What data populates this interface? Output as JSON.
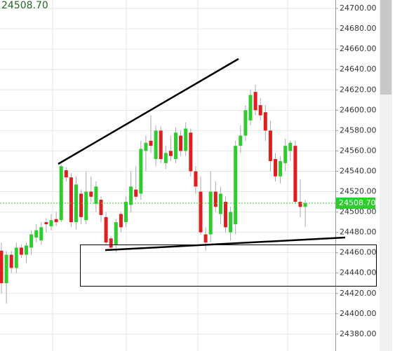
{
  "chart_data": {
    "type": "candlestick",
    "categories": [
      null,
      null,
      null,
      null,
      null,
      null,
      null,
      null,
      null,
      null,
      null,
      null,
      null,
      null,
      null,
      null,
      null,
      null,
      null,
      null,
      null,
      null,
      null,
      null,
      null,
      null,
      null,
      null,
      null,
      null,
      null,
      null,
      null,
      null,
      null,
      null,
      null,
      null,
      null,
      null,
      null,
      null,
      null,
      null,
      null,
      null,
      null,
      null,
      null,
      null,
      null,
      null,
      null,
      null,
      null,
      null,
      null,
      null,
      null,
      null,
      null,
      null
    ],
    "open": [
      24462,
      24430,
      24458,
      24445,
      24465,
      24458,
      24465,
      24475,
      24472,
      24490,
      24486,
      24493,
      24492,
      24541,
      24534,
      24490,
      24518,
      24492,
      24520,
      24508,
      24512,
      24495,
      24474,
      24468,
      24498,
      24490,
      24507,
      24522,
      24518,
      24560,
      24570,
      24552,
      24580,
      24548,
      24560,
      24552,
      24575,
      24560,
      24578,
      24540,
      24520,
      24478,
      24478,
      24520,
      24498,
      24510,
      24480,
      24488,
      24565,
      24575,
      24590,
      24618,
      24605,
      24598,
      24580,
      24552,
      24535,
      24548,
      24560,
      24565,
      24510,
      24505
    ],
    "high": [
      24470,
      24462,
      24462,
      24470,
      24468,
      24470,
      24482,
      24488,
      24490,
      24494,
      24498,
      24500,
      24547,
      24544,
      24538,
      24535,
      24522,
      24540,
      24535,
      24530,
      24515,
      24500,
      24476,
      24493,
      24500,
      24515,
      24540,
      24545,
      24570,
      24575,
      24595,
      24585,
      24584,
      24565,
      24575,
      24583,
      24580,
      24588,
      24582,
      24545,
      24535,
      24485,
      24540,
      24530,
      24525,
      24515,
      24505,
      24570,
      24585,
      24605,
      24620,
      24625,
      24612,
      24605,
      24590,
      24558,
      24555,
      24572,
      24570,
      24570,
      24532,
      24512
    ],
    "low": [
      24420,
      24410,
      24440,
      24440,
      24455,
      24450,
      24458,
      24470,
      24468,
      24480,
      24482,
      24486,
      24490,
      24530,
      24485,
      24483,
      24488,
      24488,
      24510,
      24500,
      24490,
      24468,
      24462,
      24460,
      24480,
      24485,
      24500,
      24512,
      24512,
      24540,
      24558,
      24545,
      24548,
      24542,
      24550,
      24548,
      24555,
      24555,
      24535,
      24518,
      24478,
      24462,
      24470,
      24500,
      24488,
      24480,
      24472,
      24478,
      24558,
      24570,
      24585,
      24595,
      24590,
      24570,
      24540,
      24530,
      24528,
      24540,
      24550,
      24508,
      24495,
      24485
    ],
    "close": [
      24430,
      24458,
      24445,
      24465,
      24458,
      24467,
      24478,
      24482,
      24485,
      24488,
      24492,
      24490,
      24545,
      24534,
      24490,
      24527,
      24495,
      24520,
      24515,
      24525,
      24497,
      24470,
      24465,
      24490,
      24485,
      24510,
      24525,
      24515,
      24562,
      24568,
      24565,
      24580,
      24552,
      24558,
      24555,
      24578,
      24560,
      24582,
      24540,
      24525,
      24480,
      24470,
      24520,
      24505,
      24518,
      24485,
      24500,
      24565,
      24575,
      24600,
      24615,
      24600,
      24595,
      24580,
      24550,
      24535,
      24550,
      24565,
      24568,
      24510,
      24505,
      24508.7
    ],
    "up_color": "#2ecc2e",
    "down_color": "#dd1f1f",
    "last_price": {
      "value": 24508.7,
      "label": "24508.70"
    },
    "ylim": [
      24363.4,
      24708.3
    ],
    "yticks": [
      {
        "value": 24380,
        "label": "24380.00"
      },
      {
        "value": 24400,
        "label": "24400.00"
      },
      {
        "value": 24420,
        "label": "24420.00"
      },
      {
        "value": 24440,
        "label": "24440.00"
      },
      {
        "value": 24460,
        "label": "24460.00"
      },
      {
        "value": 24480,
        "label": "24480.00"
      },
      {
        "value": 24500,
        "label": "24500.00"
      },
      {
        "value": 24520,
        "label": "24520.00"
      },
      {
        "value": 24540,
        "label": "24540.00"
      },
      {
        "value": 24560,
        "label": "24560.00"
      },
      {
        "value": 24580,
        "label": "24580.00"
      },
      {
        "value": 24600,
        "label": "24600.00"
      },
      {
        "value": 24620,
        "label": "24620.00"
      },
      {
        "value": 24640,
        "label": "24640.00"
      },
      {
        "value": 24660,
        "label": "24660.00"
      },
      {
        "value": 24680,
        "label": "24680.00"
      },
      {
        "value": 24700,
        "label": "24700.00"
      }
    ],
    "grid": true
  }
}
